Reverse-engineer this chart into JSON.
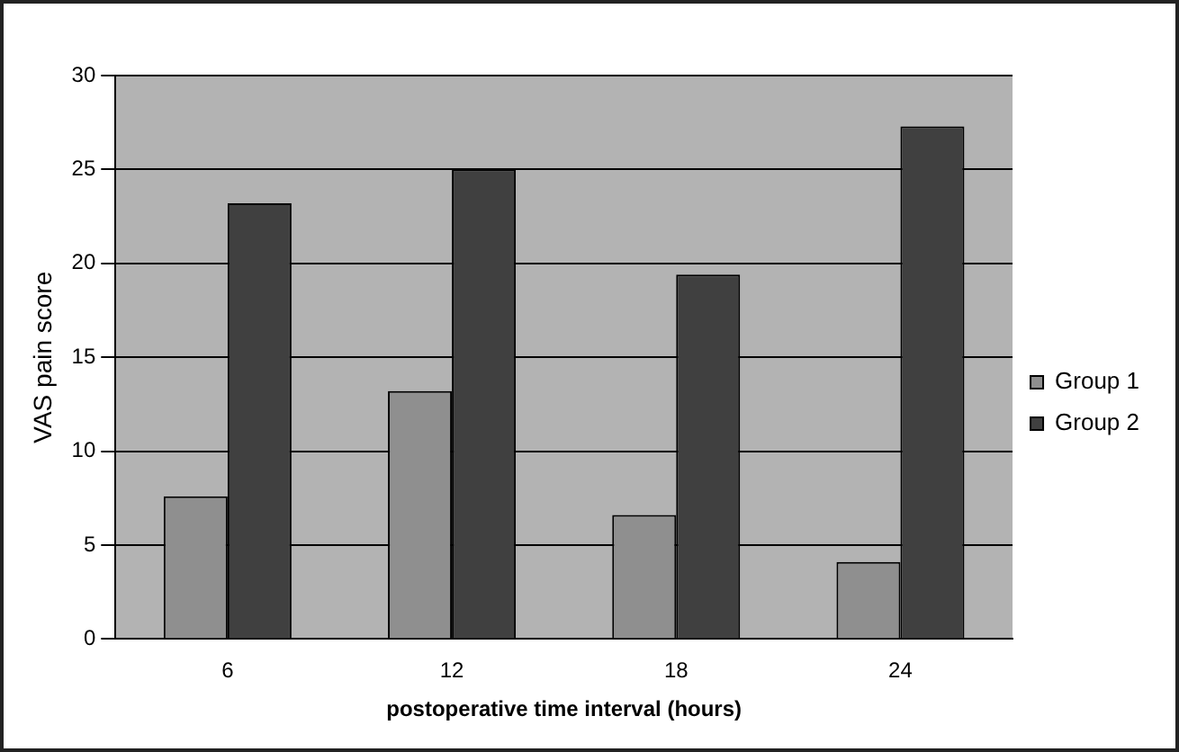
{
  "chart_data": {
    "type": "bar",
    "xlabel": "postoperative time interval (hours)",
    "ylabel": "VAS pain score",
    "categories": [
      "6",
      "12",
      "18",
      "24"
    ],
    "series": [
      {
        "name": "Group 1",
        "color": "#8f8f8f",
        "values": [
          7.6,
          13.2,
          6.6,
          4.1
        ]
      },
      {
        "name": "Group 2",
        "color": "#404040",
        "values": [
          23.2,
          25.0,
          19.4,
          27.3
        ]
      }
    ],
    "ylim": [
      0,
      30
    ],
    "yticks": [
      0,
      5,
      10,
      15,
      20,
      25,
      30
    ],
    "grid": "y",
    "legend": "right"
  }
}
